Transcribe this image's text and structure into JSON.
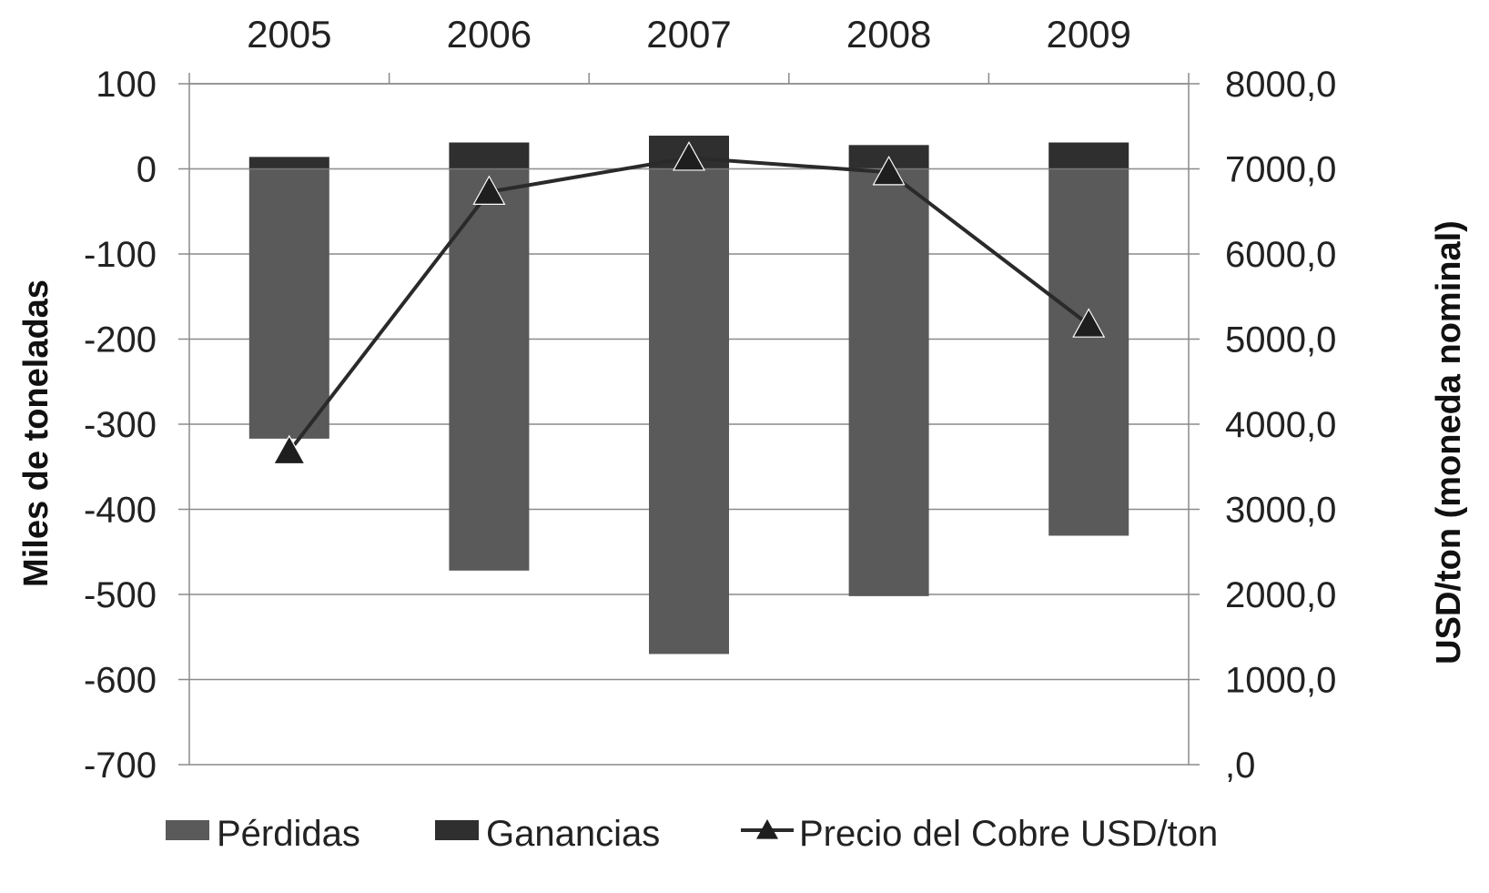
{
  "chart_data": {
    "type": "bar",
    "categories": [
      "2005",
      "2006",
      "2007",
      "2008",
      "2009"
    ],
    "category_axis_position": "top",
    "xlabel": "",
    "ylabel": "Miles de toneladas",
    "y2label": "USD/ton  (moneda nominal)",
    "ylim": [
      -700,
      100
    ],
    "y2lim": [
      0,
      8000
    ],
    "yticks": [
      "100",
      "0",
      "-100",
      "-200",
      "-300",
      "-400",
      "-500",
      "-600",
      "-700"
    ],
    "y2ticks": [
      "8000,0",
      "7000,0",
      "6000,0",
      "5000,0",
      "4000,0",
      "3000,0",
      "2000,0",
      "1000,0",
      ",0"
    ],
    "grid": true,
    "legend_position": "bottom",
    "series": [
      {
        "name": "Pérdidas",
        "kind": "bar",
        "axis": "left",
        "color": "#5a5a5a",
        "values": [
          -317,
          -472,
          -570,
          -502,
          -431
        ]
      },
      {
        "name": "Ganancias",
        "kind": "bar",
        "axis": "left",
        "color": "#2f2f2f",
        "values": [
          14,
          31,
          39,
          28,
          31
        ]
      },
      {
        "name": "Precio del Cobre USD/ton",
        "kind": "line",
        "axis": "right",
        "marker": "triangle",
        "color": "#2a2a2a",
        "values": [
          3680,
          6730,
          7130,
          6960,
          5170
        ]
      }
    ]
  }
}
